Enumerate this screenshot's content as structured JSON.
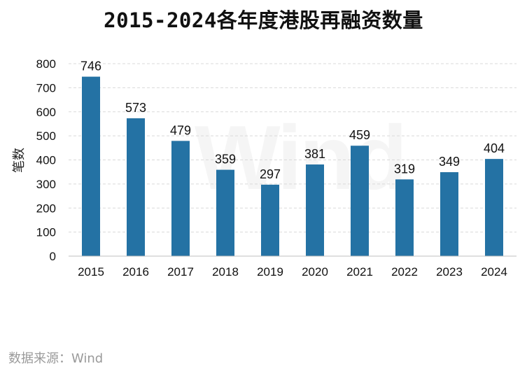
{
  "chart_data": {
    "type": "bar",
    "title": "2015-2024各年度港股再融资数量",
    "ylabel": "笔数",
    "xlabel": "",
    "categories": [
      "2015",
      "2016",
      "2017",
      "2018",
      "2019",
      "2020",
      "2021",
      "2022",
      "2023",
      "2024"
    ],
    "values": [
      746,
      573,
      479,
      359,
      297,
      381,
      459,
      319,
      349,
      404
    ],
    "ylim": [
      0,
      800
    ],
    "yticks": [
      0,
      100,
      200,
      300,
      400,
      500,
      600,
      700,
      800
    ],
    "grid": true,
    "legend": "none",
    "bar_color": "#2472a4"
  },
  "source": "数据来源：Wind",
  "watermark": "Wind"
}
